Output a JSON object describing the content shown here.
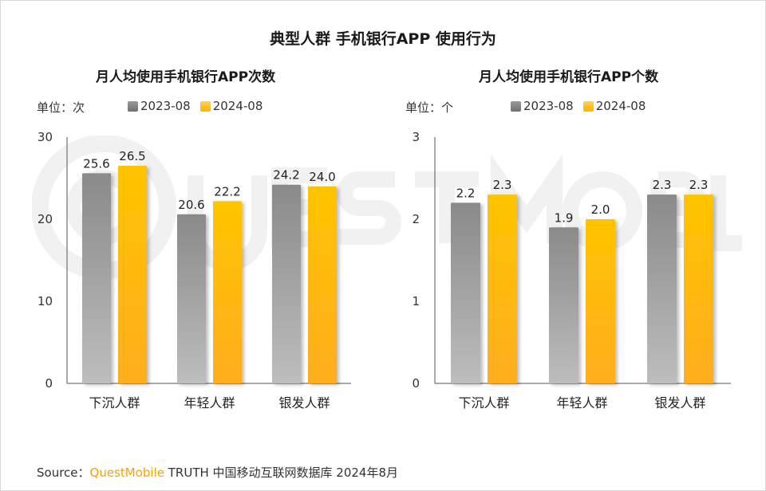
{
  "title": "典型人群 手机银行APP 使用行为",
  "colors": {
    "series_2023": "#8c8c8c",
    "series_2024": "#ffc000",
    "axis": "#555555",
    "watermark": "#f0f0f0"
  },
  "chart_data": [
    {
      "type": "bar",
      "title": "月人均使用手机银行APP次数",
      "unit_label": "单位：次",
      "categories": [
        "下沉人群",
        "年轻人群",
        "银发人群"
      ],
      "series": [
        {
          "name": "2023-08",
          "values": [
            25.6,
            20.6,
            24.2
          ],
          "labels": [
            "25.6",
            "20.6",
            "24.2"
          ]
        },
        {
          "name": "2024-08",
          "values": [
            26.5,
            22.2,
            24.0
          ],
          "labels": [
            "26.5",
            "22.2",
            "24.0"
          ]
        }
      ],
      "ylim": [
        0,
        30
      ],
      "yticks": [
        0,
        10,
        20,
        30
      ],
      "ytick_labels": [
        "0",
        "10",
        "20",
        "30"
      ],
      "grid": false,
      "legend_position": "top"
    },
    {
      "type": "bar",
      "title": "月人均使用手机银行APP个数",
      "unit_label": "单位：个",
      "categories": [
        "下沉人群",
        "年轻人群",
        "银发人群"
      ],
      "series": [
        {
          "name": "2023-08",
          "values": [
            2.2,
            1.9,
            2.3
          ],
          "labels": [
            "2.2",
            "1.9",
            "2.3"
          ]
        },
        {
          "name": "2024-08",
          "values": [
            2.3,
            2.0,
            2.3
          ],
          "labels": [
            "2.3",
            "2.0",
            "2.3"
          ]
        }
      ],
      "ylim": [
        0,
        3
      ],
      "yticks": [
        0,
        1,
        2,
        3
      ],
      "ytick_labels": [
        "0",
        "1",
        "2",
        "3"
      ],
      "grid": false,
      "legend_position": "top"
    }
  ],
  "source": {
    "prefix": "Source：",
    "brand": "QuestMobile",
    "rest": " TRUTH 中国移动互联网数据库 2024年8月"
  }
}
